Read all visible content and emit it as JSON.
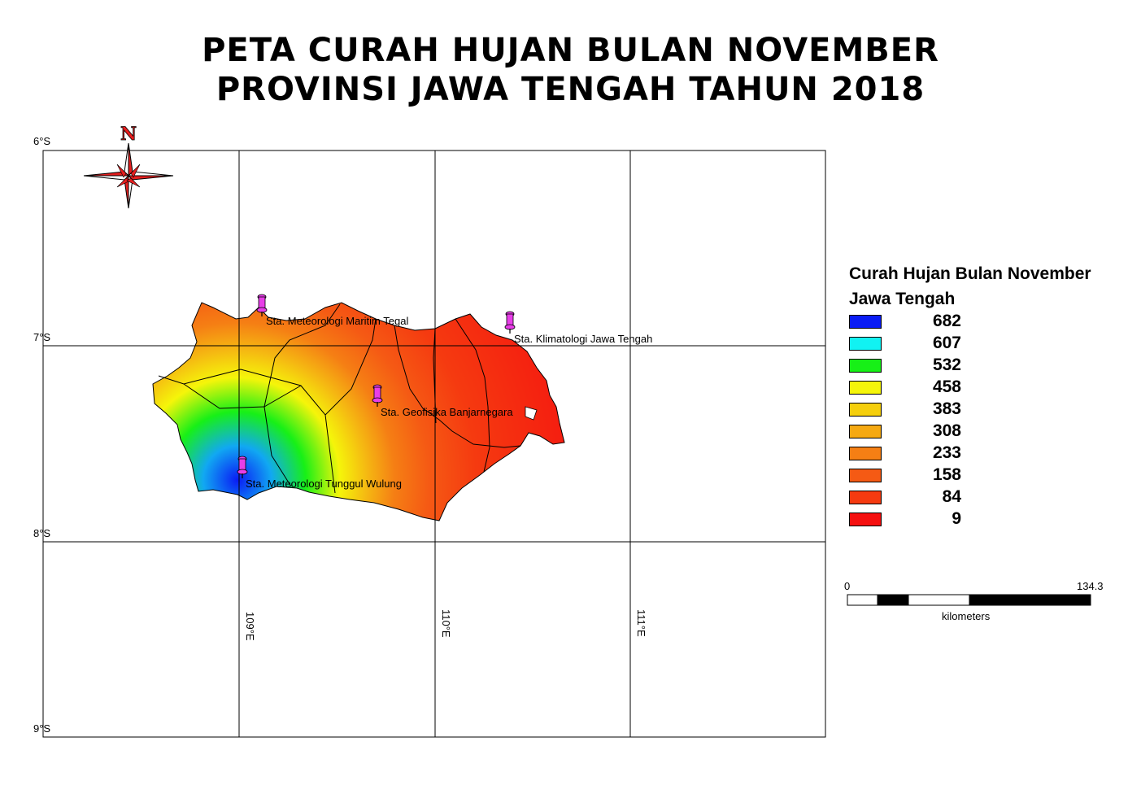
{
  "title": {
    "line1": "PETA CURAH HUJAN BULAN NOVEMBER",
    "line2": "PROVINSI JAWA TENGAH TAHUN 2018"
  },
  "north_arrow": {
    "label": "N",
    "icon": "compass-rose-icon"
  },
  "grid": {
    "lat_labels": [
      "6°S",
      "7°S",
      "8°S",
      "9°S"
    ],
    "lon_labels": [
      "109°E",
      "110°E",
      "111°E"
    ]
  },
  "stations": [
    {
      "name": "Sta. Meteorologi Maritim Tegal"
    },
    {
      "name": "Sta. Klimatologi Jawa Tengah"
    },
    {
      "name": "Sta. Geofisika Banjarnegara"
    },
    {
      "name": "Sta. Meteorologi Tunggul Wulung"
    }
  ],
  "station_marker": {
    "icon": "pushpin-icon",
    "color": "#e83ee8"
  },
  "legend": {
    "title_line1": "Curah Hujan Bulan November",
    "title_line2": "Jawa Tengah",
    "classes": [
      {
        "value": "682",
        "color": "#0a1cf5"
      },
      {
        "value": "607",
        "color": "#11f2f2"
      },
      {
        "value": "532",
        "color": "#17f017"
      },
      {
        "value": "458",
        "color": "#f5f50a"
      },
      {
        "value": "383",
        "color": "#f5cf0c"
      },
      {
        "value": "308",
        "color": "#f5a912"
      },
      {
        "value": "233",
        "color": "#f57f14"
      },
      {
        "value": "158",
        "color": "#f55a14"
      },
      {
        "value": "84",
        "color": "#f53a10"
      },
      {
        "value": "9",
        "color": "#f51010"
      }
    ]
  },
  "scale_bar": {
    "start": "0",
    "end": "134.3",
    "unit": "kilometers"
  }
}
